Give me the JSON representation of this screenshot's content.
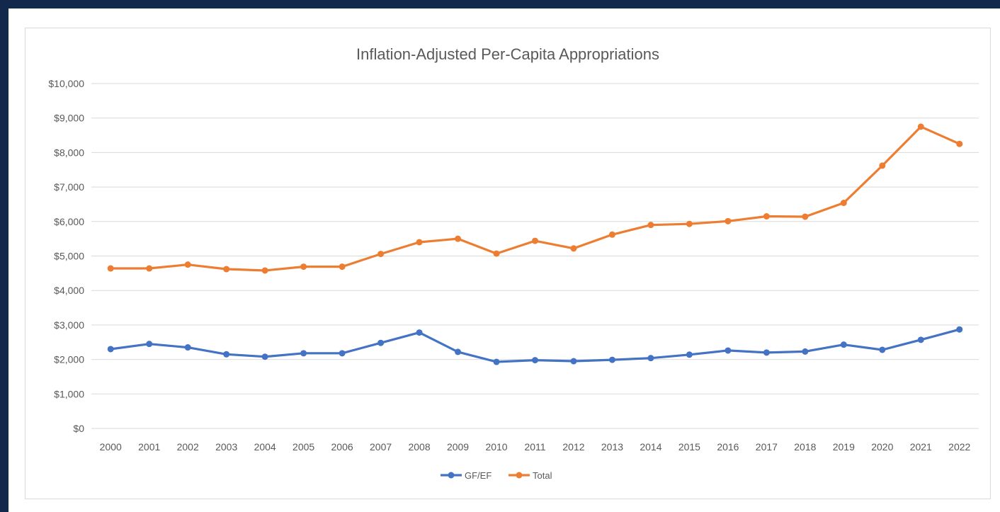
{
  "chart_data": {
    "type": "line",
    "title": "Inflation-Adjusted Per-Capita Appropriations",
    "xlabel": "",
    "ylabel": "",
    "categories": [
      "2000",
      "2001",
      "2002",
      "2003",
      "2004",
      "2005",
      "2006",
      "2007",
      "2008",
      "2009",
      "2010",
      "2011",
      "2012",
      "2013",
      "2014",
      "2015",
      "2016",
      "2017",
      "2018",
      "2019",
      "2020",
      "2021",
      "2022"
    ],
    "y_tick_labels": [
      "$0",
      "$1,000",
      "$2,000",
      "$3,000",
      "$4,000",
      "$5,000",
      "$6,000",
      "$7,000",
      "$8,000",
      "$9,000",
      "$10,000"
    ],
    "ylim": [
      0,
      10000
    ],
    "grid": true,
    "legend_position": "bottom",
    "series": [
      {
        "name": "GF/EF",
        "color": "#4472c4",
        "values": [
          2300,
          2450,
          2350,
          2150,
          2080,
          2180,
          2180,
          2480,
          2780,
          2220,
          1930,
          1980,
          1950,
          1990,
          2040,
          2140,
          2260,
          2200,
          2230,
          2430,
          2280,
          2570,
          2870
        ]
      },
      {
        "name": "Total",
        "color": "#ed7d31",
        "values": [
          4640,
          4640,
          4750,
          4620,
          4580,
          4690,
          4690,
          5060,
          5400,
          5500,
          5070,
          5440,
          5220,
          5620,
          5900,
          5930,
          6010,
          6150,
          6140,
          6540,
          7620,
          8750,
          8250
        ]
      }
    ]
  }
}
